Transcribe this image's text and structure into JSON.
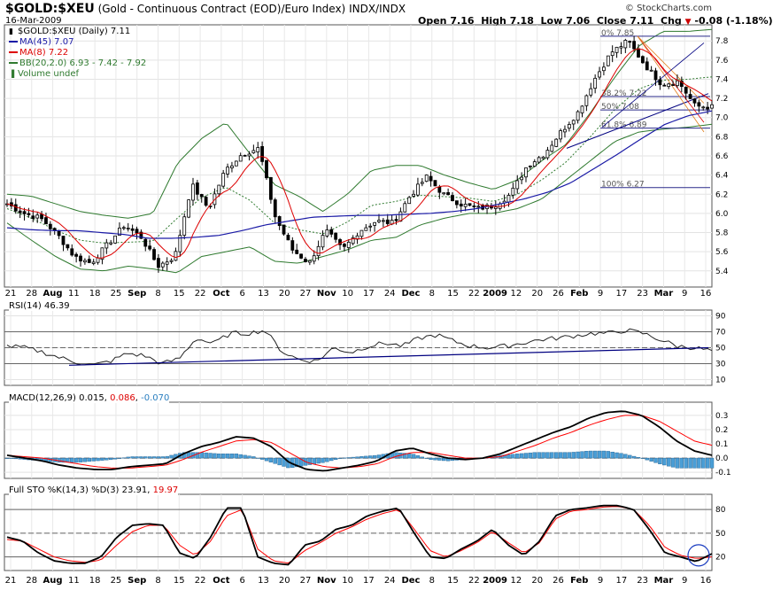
{
  "header": {
    "symbol": "$GOLD:$XEU",
    "description": "(Gold - Continuous Contract (EOD)/Euro Index)",
    "exchange": "INDX/INDX",
    "date": "16-Mar-2009",
    "brand": "© StockCharts.com",
    "open_label": "Open",
    "open": "7.16",
    "high_label": "High",
    "high": "7.18",
    "low_label": "Low",
    "low": "7.06",
    "close_label": "Close",
    "close": "7.11",
    "chg_label": "Chg",
    "chg": "-0.08 (-1.18%)",
    "chg_arrow": "▼"
  },
  "legend": {
    "price": "$GOLD:$XEU (Daily) 7.11",
    "ma45": "MA(45) 7.07",
    "ma8": "MA(8) 7.22",
    "bb": "BB(20,2.0) 6.93 - 7.42 - 7.92",
    "volume": "Volume undef"
  },
  "colors": {
    "ma45": "#1a1aa6",
    "ma8": "#dd0000",
    "bb": "#2f7a2f",
    "candle": "#000000",
    "fib": "#2a2a8a",
    "trend": "#000080",
    "hist": "#4a9ed6",
    "signal": "#ff0000",
    "circle": "#1a3cc0"
  },
  "x_axis": {
    "labels": [
      {
        "text": "21",
        "bold": false
      },
      {
        "text": "28",
        "bold": false
      },
      {
        "text": "Aug",
        "bold": true
      },
      {
        "text": "11",
        "bold": false
      },
      {
        "text": "18",
        "bold": false
      },
      {
        "text": "25",
        "bold": false
      },
      {
        "text": "Sep",
        "bold": true
      },
      {
        "text": "8",
        "bold": false
      },
      {
        "text": "15",
        "bold": false
      },
      {
        "text": "22",
        "bold": false
      },
      {
        "text": "Oct",
        "bold": true
      },
      {
        "text": "6",
        "bold": false
      },
      {
        "text": "13",
        "bold": false
      },
      {
        "text": "20",
        "bold": false
      },
      {
        "text": "27",
        "bold": false
      },
      {
        "text": "Nov",
        "bold": true
      },
      {
        "text": "10",
        "bold": false
      },
      {
        "text": "17",
        "bold": false
      },
      {
        "text": "24",
        "bold": false
      },
      {
        "text": "Dec",
        "bold": true
      },
      {
        "text": "8",
        "bold": false
      },
      {
        "text": "15",
        "bold": false
      },
      {
        "text": "22",
        "bold": false
      },
      {
        "text": "2009",
        "bold": true
      },
      {
        "text": "12",
        "bold": false
      },
      {
        "text": "20",
        "bold": false
      },
      {
        "text": "26",
        "bold": false
      },
      {
        "text": "Feb",
        "bold": true
      },
      {
        "text": "9",
        "bold": false
      },
      {
        "text": "17",
        "bold": false
      },
      {
        "text": "23",
        "bold": false
      },
      {
        "text": "Mar",
        "bold": true
      },
      {
        "text": "9",
        "bold": false
      },
      {
        "text": "16",
        "bold": false
      }
    ]
  },
  "fib_labels": [
    "0% 7.85",
    "38.2% 7.22",
    "50% 7.08",
    "61.8% 6.89",
    "100% 6.27"
  ],
  "chart_data": [
    {
      "type": "candlestick",
      "name": "price",
      "ylim": [
        5.25,
        7.95
      ],
      "yticks": [
        "5.4",
        "5.6",
        "5.8",
        "6.0",
        "6.2",
        "6.4",
        "6.6",
        "6.8",
        "7.0",
        "7.2",
        "7.4",
        "7.6",
        "7.8"
      ],
      "ytick_values": [
        5.4,
        5.6,
        5.8,
        6.0,
        6.2,
        6.4,
        6.6,
        6.8,
        7.0,
        7.2,
        7.4,
        7.6,
        7.8
      ],
      "close_anchors": [
        6.1,
        6.0,
        5.95,
        5.78,
        5.55,
        5.48,
        5.68,
        5.88,
        5.75,
        5.45,
        5.55,
        6.3,
        6.05,
        6.45,
        6.62,
        6.68,
        5.95,
        5.62,
        5.48,
        5.82,
        5.62,
        5.82,
        5.92,
        5.9,
        6.18,
        6.38,
        6.2,
        6.1,
        6.05,
        6.08,
        6.2,
        6.5,
        6.62,
        6.85,
        7.05,
        7.4,
        7.68,
        7.8,
        7.55,
        7.35,
        7.38,
        7.12,
        7.11
      ],
      "ma45_anchors": [
        5.85,
        5.83,
        5.82,
        5.82,
        5.8,
        5.78,
        5.74,
        5.74,
        5.75,
        5.77,
        5.82,
        5.88,
        5.92,
        5.96,
        5.97,
        5.98,
        5.98,
        5.99,
        6.0,
        6.02,
        6.05,
        6.1,
        6.15,
        6.22,
        6.32,
        6.47,
        6.62,
        6.78,
        6.93,
        7.02,
        7.07
      ],
      "bb_upper_anchors": [
        6.2,
        6.18,
        6.1,
        6.02,
        5.98,
        5.95,
        6.0,
        6.52,
        6.78,
        6.95,
        6.62,
        6.3,
        6.18,
        6.02,
        6.2,
        6.45,
        6.5,
        6.5,
        6.4,
        6.32,
        6.25,
        6.35,
        6.55,
        6.72,
        7.05,
        7.42,
        7.75,
        7.9,
        7.9,
        7.92
      ],
      "bb_lower_anchors": [
        5.9,
        5.72,
        5.55,
        5.42,
        5.4,
        5.45,
        5.42,
        5.38,
        5.55,
        5.6,
        5.65,
        5.5,
        5.48,
        5.55,
        5.62,
        5.72,
        5.75,
        5.88,
        5.95,
        6.0,
        6.0,
        6.05,
        6.15,
        6.35,
        6.55,
        6.75,
        6.85,
        6.88,
        6.9,
        6.93
      ],
      "fib_levels": [
        7.85,
        7.22,
        7.08,
        6.89,
        6.27
      ]
    },
    {
      "type": "line",
      "name": "RSI(14)",
      "title_label": "RSI(14)",
      "value": "46.39",
      "ylim": [
        5,
        95
      ],
      "yticks": [
        "10",
        "30",
        "50",
        "70",
        "90"
      ],
      "ytick_values": [
        10,
        30,
        50,
        70,
        90
      ],
      "reference_lines": [
        30,
        50,
        70
      ],
      "anchors": [
        52,
        50,
        45,
        38,
        32,
        28,
        33,
        43,
        40,
        30,
        36,
        62,
        55,
        68,
        68,
        72,
        45,
        35,
        33,
        50,
        44,
        52,
        56,
        52,
        62,
        66,
        58,
        52,
        50,
        52,
        56,
        60,
        62,
        65,
        68,
        68,
        72,
        68,
        60,
        52,
        50,
        46
      ]
    },
    {
      "type": "line",
      "name": "MACD(12,26,9)",
      "title_label": "MACD(12,26,9)",
      "values_text": [
        "0.015",
        "0.086",
        "-0.070"
      ],
      "ylim": [
        -0.13,
        0.38
      ],
      "yticks": [
        "-0.1",
        "0.0",
        "0.1",
        "0.2",
        "0.3"
      ],
      "ytick_values": [
        -0.1,
        0.0,
        0.1,
        0.2,
        0.3
      ],
      "macd_anchors": [
        0.02,
        0.0,
        -0.02,
        -0.05,
        -0.07,
        -0.08,
        -0.08,
        -0.06,
        -0.05,
        -0.04,
        0.03,
        0.08,
        0.11,
        0.15,
        0.14,
        0.08,
        -0.03,
        -0.08,
        -0.09,
        -0.07,
        -0.05,
        -0.02,
        0.05,
        0.07,
        0.03,
        0.0,
        -0.01,
        0.0,
        0.03,
        0.08,
        0.13,
        0.18,
        0.22,
        0.28,
        0.32,
        0.33,
        0.3,
        0.22,
        0.12,
        0.05,
        0.02
      ],
      "signal_anchors": [
        0.02,
        0.01,
        0.0,
        -0.02,
        -0.04,
        -0.06,
        -0.07,
        -0.07,
        -0.06,
        -0.05,
        -0.01,
        0.04,
        0.08,
        0.12,
        0.13,
        0.11,
        0.04,
        -0.03,
        -0.06,
        -0.07,
        -0.06,
        -0.04,
        0.01,
        0.04,
        0.04,
        0.02,
        0.0,
        0.0,
        0.01,
        0.05,
        0.09,
        0.14,
        0.18,
        0.23,
        0.27,
        0.3,
        0.3,
        0.26,
        0.19,
        0.12,
        0.09
      ]
    },
    {
      "type": "line",
      "name": "Full STO %K(14,3) %D(3)",
      "title_label": "Full STO %K(14,3) %D(3)",
      "values_text": [
        "23.91",
        "19.97"
      ],
      "ylim": [
        5,
        97
      ],
      "yticks": [
        "20",
        "50",
        "80"
      ],
      "ytick_values": [
        20,
        50,
        80
      ],
      "reference_lines": [
        20,
        50,
        80
      ],
      "k_anchors": [
        45,
        40,
        25,
        15,
        12,
        12,
        20,
        45,
        60,
        62,
        60,
        25,
        18,
        45,
        82,
        82,
        20,
        12,
        10,
        35,
        40,
        55,
        60,
        72,
        78,
        82,
        50,
        20,
        18,
        30,
        40,
        55,
        35,
        22,
        40,
        72,
        80,
        82,
        85,
        85,
        80,
        55,
        25,
        20,
        14,
        24
      ],
      "d_anchors": [
        42,
        40,
        30,
        20,
        15,
        13,
        16,
        35,
        52,
        60,
        60,
        35,
        22,
        40,
        72,
        80,
        30,
        15,
        12,
        28,
        38,
        50,
        58,
        68,
        75,
        80,
        55,
        28,
        20,
        28,
        38,
        52,
        38,
        25,
        38,
        68,
        78,
        80,
        83,
        84,
        80,
        60,
        32,
        22,
        18,
        20
      ]
    }
  ]
}
